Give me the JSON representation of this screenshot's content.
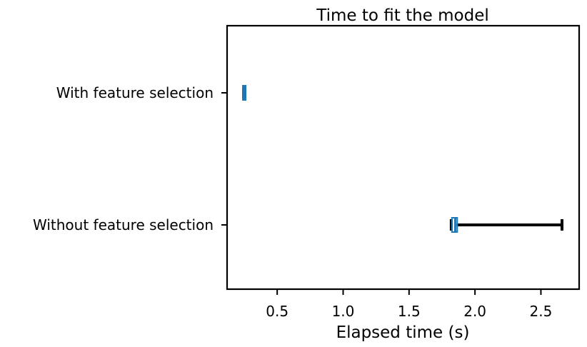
{
  "chart_data": {
    "type": "boxplot",
    "orientation": "horizontal",
    "title": "Time to fit the model",
    "xlabel": "Elapsed time (s)",
    "ylabel": "",
    "xlim": [
      0.12,
      2.79
    ],
    "xticks": [
      0.5,
      1.0,
      1.5,
      2.0,
      2.5
    ],
    "xtick_labels": [
      "0.5",
      "1.0",
      "1.5",
      "2.0",
      "2.5"
    ],
    "grid": false,
    "categories": [
      "With feature selection",
      "Without feature selection"
    ],
    "boxes": [
      {
        "category": "With feature selection",
        "whislo": 0.245,
        "q1": 0.245,
        "median": 0.248,
        "q3": 0.252,
        "whishi": 0.252
      },
      {
        "category": "Without feature selection",
        "whislo": 1.82,
        "q1": 1.83,
        "median": 1.85,
        "q3": 1.86,
        "whishi": 2.66
      }
    ],
    "colors": {
      "box_edge": "#1f77b4",
      "median": "#1f77b4",
      "whisker": "#000000",
      "frame": "#000000"
    }
  }
}
